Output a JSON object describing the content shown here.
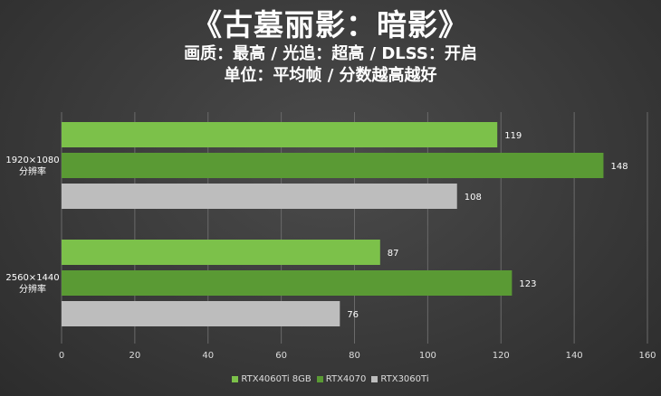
{
  "header": {
    "title": "《古墓丽影：暗影》",
    "subtitle_1": "画质：最高 / 光追：超高 / DLSS：开启",
    "subtitle_2": "单位：平均帧 / 分数越高越好"
  },
  "chart_data": {
    "type": "bar",
    "orientation": "horizontal",
    "title": "《古墓丽影：暗影》",
    "categories": [
      [
        "1920×1080",
        "分辨率"
      ],
      [
        "2560×1440",
        "分辨率"
      ]
    ],
    "series": [
      {
        "name": "RTX4060Ti 8GB",
        "color": "#7cc14a",
        "values": [
          119,
          87
        ]
      },
      {
        "name": "RTX4070",
        "color": "#5a9a34",
        "values": [
          148,
          123
        ]
      },
      {
        "name": "RTX3060Ti",
        "color": "#bdbdbd",
        "values": [
          108,
          76
        ]
      }
    ],
    "xlim": [
      0,
      160
    ],
    "xticks": [
      0,
      20,
      40,
      60,
      80,
      100,
      120,
      140,
      160
    ],
    "grid": true,
    "legend_position": "bottom"
  }
}
